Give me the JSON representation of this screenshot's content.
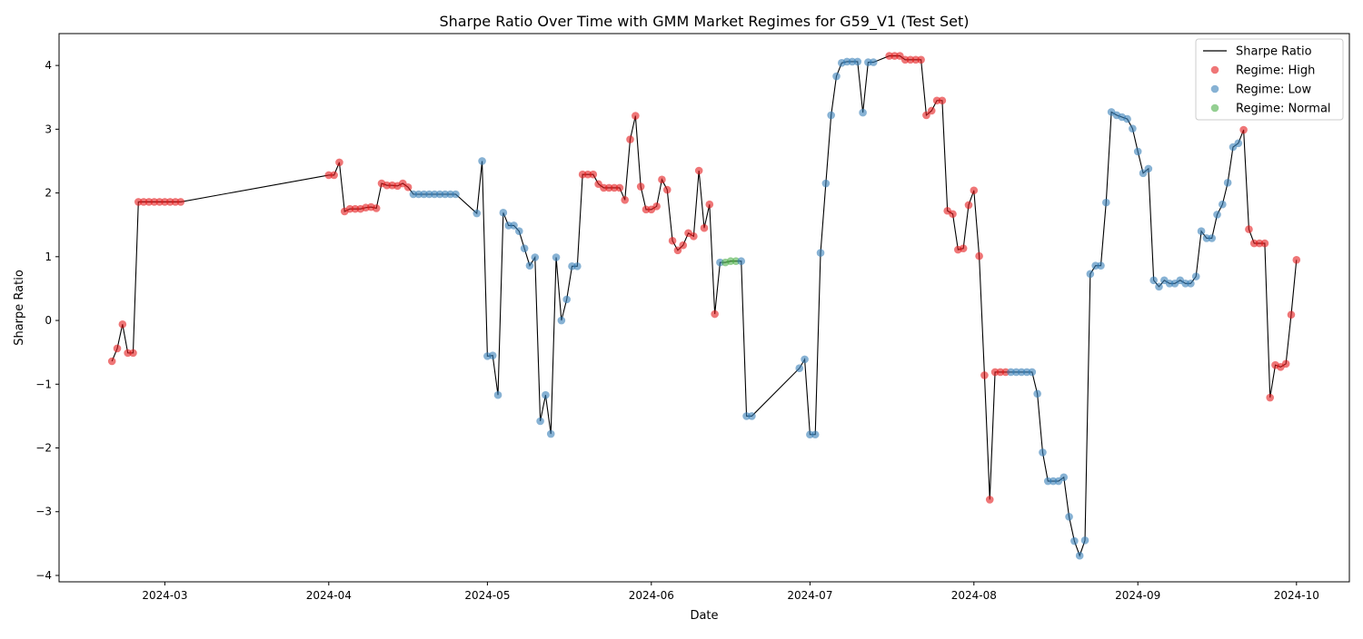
{
  "chart_data": {
    "type": "scatter",
    "title": "Sharpe Ratio Over Time with GMM Market Regimes for G59_V1 (Test Set)",
    "xlabel": "Date",
    "ylabel": "Sharpe Ratio",
    "xlim": [
      "2024-02-10",
      "2024-10-11"
    ],
    "ylim": [
      -4.1,
      4.5
    ],
    "x_ticks": [
      "2024-03-01",
      "2024-04-01",
      "2024-05-01",
      "2024-06-01",
      "2024-07-01",
      "2024-08-01",
      "2024-09-01",
      "2024-10-01"
    ],
    "x_tick_labels": [
      "2024-03",
      "2024-04",
      "2024-05",
      "2024-06",
      "2024-07",
      "2024-08",
      "2024-09",
      "2024-10"
    ],
    "y_ticks": [
      -4,
      -3,
      -2,
      -1,
      0,
      1,
      2,
      3,
      4
    ],
    "y_tick_labels": [
      "−4",
      "−3",
      "−2",
      "−1",
      "0",
      "1",
      "2",
      "3",
      "4"
    ],
    "grid": false,
    "legend_position": "top-right",
    "legend": [
      {
        "label": "Sharpe Ratio",
        "kind": "line",
        "color": "#000000"
      },
      {
        "label": "Regime: High",
        "kind": "marker",
        "color": "#e41a1c"
      },
      {
        "label": "Regime: Low",
        "kind": "marker",
        "color": "#377eb8"
      },
      {
        "label": "Regime: Normal",
        "kind": "marker",
        "color": "#4daf4a"
      }
    ],
    "line_color": "#000000",
    "regime_colors": {
      "High": "#e41a1c",
      "Low": "#377eb8",
      "Normal": "#4daf4a"
    },
    "points": [
      {
        "x": "2024-02-20",
        "y": -0.64,
        "regime": "High"
      },
      {
        "x": "2024-02-21",
        "y": -0.44,
        "regime": "High"
      },
      {
        "x": "2024-02-22",
        "y": -0.06,
        "regime": "High"
      },
      {
        "x": "2024-02-23",
        "y": -0.51,
        "regime": "High"
      },
      {
        "x": "2024-02-24",
        "y": -0.51,
        "regime": "High"
      },
      {
        "x": "2024-02-25",
        "y": 1.86,
        "regime": "High"
      },
      {
        "x": "2024-02-26",
        "y": 1.86,
        "regime": "High"
      },
      {
        "x": "2024-02-27",
        "y": 1.86,
        "regime": "High"
      },
      {
        "x": "2024-02-28",
        "y": 1.86,
        "regime": "High"
      },
      {
        "x": "2024-02-29",
        "y": 1.86,
        "regime": "High"
      },
      {
        "x": "2024-03-01",
        "y": 1.86,
        "regime": "High"
      },
      {
        "x": "2024-03-02",
        "y": 1.86,
        "regime": "High"
      },
      {
        "x": "2024-03-03",
        "y": 1.86,
        "regime": "High"
      },
      {
        "x": "2024-03-04",
        "y": 1.86,
        "regime": "High"
      },
      {
        "x": "2024-04-01",
        "y": 2.28,
        "regime": "High"
      },
      {
        "x": "2024-04-02",
        "y": 2.28,
        "regime": "High"
      },
      {
        "x": "2024-04-03",
        "y": 2.48,
        "regime": "High"
      },
      {
        "x": "2024-04-04",
        "y": 1.71,
        "regime": "High"
      },
      {
        "x": "2024-04-05",
        "y": 1.75,
        "regime": "High"
      },
      {
        "x": "2024-04-06",
        "y": 1.75,
        "regime": "High"
      },
      {
        "x": "2024-04-07",
        "y": 1.75,
        "regime": "High"
      },
      {
        "x": "2024-04-08",
        "y": 1.77,
        "regime": "High"
      },
      {
        "x": "2024-04-09",
        "y": 1.78,
        "regime": "High"
      },
      {
        "x": "2024-04-10",
        "y": 1.76,
        "regime": "High"
      },
      {
        "x": "2024-04-11",
        "y": 2.15,
        "regime": "High"
      },
      {
        "x": "2024-04-12",
        "y": 2.12,
        "regime": "High"
      },
      {
        "x": "2024-04-13",
        "y": 2.12,
        "regime": "High"
      },
      {
        "x": "2024-04-14",
        "y": 2.11,
        "regime": "High"
      },
      {
        "x": "2024-04-15",
        "y": 2.15,
        "regime": "High"
      },
      {
        "x": "2024-04-16",
        "y": 2.09,
        "regime": "High"
      },
      {
        "x": "2024-04-17",
        "y": 1.98,
        "regime": "Low"
      },
      {
        "x": "2024-04-18",
        "y": 1.98,
        "regime": "Low"
      },
      {
        "x": "2024-04-19",
        "y": 1.98,
        "regime": "Low"
      },
      {
        "x": "2024-04-20",
        "y": 1.98,
        "regime": "Low"
      },
      {
        "x": "2024-04-21",
        "y": 1.98,
        "regime": "Low"
      },
      {
        "x": "2024-04-22",
        "y": 1.98,
        "regime": "Low"
      },
      {
        "x": "2024-04-23",
        "y": 1.98,
        "regime": "Low"
      },
      {
        "x": "2024-04-24",
        "y": 1.98,
        "regime": "Low"
      },
      {
        "x": "2024-04-25",
        "y": 1.98,
        "regime": "Low"
      },
      {
        "x": "2024-04-29",
        "y": 1.68,
        "regime": "Low"
      },
      {
        "x": "2024-04-30",
        "y": 2.5,
        "regime": "Low"
      },
      {
        "x": "2024-05-01",
        "y": -0.56,
        "regime": "Low"
      },
      {
        "x": "2024-05-02",
        "y": -0.55,
        "regime": "Low"
      },
      {
        "x": "2024-05-03",
        "y": -1.17,
        "regime": "Low"
      },
      {
        "x": "2024-05-04",
        "y": 1.69,
        "regime": "Low"
      },
      {
        "x": "2024-05-05",
        "y": 1.49,
        "regime": "Low"
      },
      {
        "x": "2024-05-06",
        "y": 1.49,
        "regime": "Low"
      },
      {
        "x": "2024-05-07",
        "y": 1.4,
        "regime": "Low"
      },
      {
        "x": "2024-05-08",
        "y": 1.13,
        "regime": "Low"
      },
      {
        "x": "2024-05-09",
        "y": 0.86,
        "regime": "Low"
      },
      {
        "x": "2024-05-10",
        "y": 0.99,
        "regime": "Low"
      },
      {
        "x": "2024-05-11",
        "y": -1.58,
        "regime": "Low"
      },
      {
        "x": "2024-05-12",
        "y": -1.17,
        "regime": "Low"
      },
      {
        "x": "2024-05-13",
        "y": -1.78,
        "regime": "Low"
      },
      {
        "x": "2024-05-14",
        "y": 0.99,
        "regime": "Low"
      },
      {
        "x": "2024-05-15",
        "y": 0.0,
        "regime": "Low"
      },
      {
        "x": "2024-05-16",
        "y": 0.33,
        "regime": "Low"
      },
      {
        "x": "2024-05-17",
        "y": 0.85,
        "regime": "Low"
      },
      {
        "x": "2024-05-18",
        "y": 0.85,
        "regime": "Low"
      },
      {
        "x": "2024-05-19",
        "y": 2.29,
        "regime": "High"
      },
      {
        "x": "2024-05-20",
        "y": 2.29,
        "regime": "High"
      },
      {
        "x": "2024-05-21",
        "y": 2.29,
        "regime": "High"
      },
      {
        "x": "2024-05-22",
        "y": 2.14,
        "regime": "High"
      },
      {
        "x": "2024-05-23",
        "y": 2.08,
        "regime": "High"
      },
      {
        "x": "2024-05-24",
        "y": 2.08,
        "regime": "High"
      },
      {
        "x": "2024-05-25",
        "y": 2.08,
        "regime": "High"
      },
      {
        "x": "2024-05-26",
        "y": 2.08,
        "regime": "High"
      },
      {
        "x": "2024-05-27",
        "y": 1.89,
        "regime": "High"
      },
      {
        "x": "2024-05-28",
        "y": 2.84,
        "regime": "High"
      },
      {
        "x": "2024-05-29",
        "y": 3.21,
        "regime": "High"
      },
      {
        "x": "2024-05-30",
        "y": 2.1,
        "regime": "High"
      },
      {
        "x": "2024-05-31",
        "y": 1.74,
        "regime": "High"
      },
      {
        "x": "2024-06-01",
        "y": 1.74,
        "regime": "High"
      },
      {
        "x": "2024-06-02",
        "y": 1.79,
        "regime": "High"
      },
      {
        "x": "2024-06-03",
        "y": 2.21,
        "regime": "High"
      },
      {
        "x": "2024-06-04",
        "y": 2.05,
        "regime": "High"
      },
      {
        "x": "2024-06-05",
        "y": 1.25,
        "regime": "High"
      },
      {
        "x": "2024-06-06",
        "y": 1.1,
        "regime": "High"
      },
      {
        "x": "2024-06-07",
        "y": 1.18,
        "regime": "High"
      },
      {
        "x": "2024-06-08",
        "y": 1.37,
        "regime": "High"
      },
      {
        "x": "2024-06-09",
        "y": 1.32,
        "regime": "High"
      },
      {
        "x": "2024-06-10",
        "y": 2.35,
        "regime": "High"
      },
      {
        "x": "2024-06-11",
        "y": 1.45,
        "regime": "High"
      },
      {
        "x": "2024-06-12",
        "y": 1.82,
        "regime": "High"
      },
      {
        "x": "2024-06-13",
        "y": 0.1,
        "regime": "High"
      },
      {
        "x": "2024-06-14",
        "y": 0.91,
        "regime": "Low"
      },
      {
        "x": "2024-06-15",
        "y": 0.91,
        "regime": "Normal"
      },
      {
        "x": "2024-06-16",
        "y": 0.93,
        "regime": "Normal"
      },
      {
        "x": "2024-06-17",
        "y": 0.93,
        "regime": "Normal"
      },
      {
        "x": "2024-06-18",
        "y": 0.93,
        "regime": "Low"
      },
      {
        "x": "2024-06-19",
        "y": -1.5,
        "regime": "Low"
      },
      {
        "x": "2024-06-20",
        "y": -1.5,
        "regime": "Low"
      },
      {
        "x": "2024-06-29",
        "y": -0.75,
        "regime": "Low"
      },
      {
        "x": "2024-06-30",
        "y": -0.61,
        "regime": "Low"
      },
      {
        "x": "2024-07-01",
        "y": -1.79,
        "regime": "Low"
      },
      {
        "x": "2024-07-02",
        "y": -1.79,
        "regime": "Low"
      },
      {
        "x": "2024-07-03",
        "y": 1.06,
        "regime": "Low"
      },
      {
        "x": "2024-07-04",
        "y": 2.15,
        "regime": "Low"
      },
      {
        "x": "2024-07-05",
        "y": 3.22,
        "regime": "Low"
      },
      {
        "x": "2024-07-06",
        "y": 3.83,
        "regime": "Low"
      },
      {
        "x": "2024-07-07",
        "y": 4.04,
        "regime": "Low"
      },
      {
        "x": "2024-07-08",
        "y": 4.06,
        "regime": "Low"
      },
      {
        "x": "2024-07-09",
        "y": 4.06,
        "regime": "Low"
      },
      {
        "x": "2024-07-10",
        "y": 4.06,
        "regime": "Low"
      },
      {
        "x": "2024-07-11",
        "y": 3.26,
        "regime": "Low"
      },
      {
        "x": "2024-07-12",
        "y": 4.05,
        "regime": "Low"
      },
      {
        "x": "2024-07-13",
        "y": 4.05,
        "regime": "Low"
      },
      {
        "x": "2024-07-16",
        "y": 4.15,
        "regime": "High"
      },
      {
        "x": "2024-07-17",
        "y": 4.15,
        "regime": "High"
      },
      {
        "x": "2024-07-18",
        "y": 4.15,
        "regime": "High"
      },
      {
        "x": "2024-07-19",
        "y": 4.09,
        "regime": "High"
      },
      {
        "x": "2024-07-20",
        "y": 4.09,
        "regime": "High"
      },
      {
        "x": "2024-07-21",
        "y": 4.09,
        "regime": "High"
      },
      {
        "x": "2024-07-22",
        "y": 4.09,
        "regime": "High"
      },
      {
        "x": "2024-07-23",
        "y": 3.22,
        "regime": "High"
      },
      {
        "x": "2024-07-24",
        "y": 3.29,
        "regime": "High"
      },
      {
        "x": "2024-07-25",
        "y": 3.45,
        "regime": "High"
      },
      {
        "x": "2024-07-26",
        "y": 3.45,
        "regime": "High"
      },
      {
        "x": "2024-07-27",
        "y": 1.72,
        "regime": "High"
      },
      {
        "x": "2024-07-28",
        "y": 1.67,
        "regime": "High"
      },
      {
        "x": "2024-07-29",
        "y": 1.11,
        "regime": "High"
      },
      {
        "x": "2024-07-30",
        "y": 1.13,
        "regime": "High"
      },
      {
        "x": "2024-07-31",
        "y": 1.81,
        "regime": "High"
      },
      {
        "x": "2024-08-01",
        "y": 2.04,
        "regime": "High"
      },
      {
        "x": "2024-08-02",
        "y": 1.01,
        "regime": "High"
      },
      {
        "x": "2024-08-03",
        "y": -0.86,
        "regime": "High"
      },
      {
        "x": "2024-08-04",
        "y": -2.81,
        "regime": "High"
      },
      {
        "x": "2024-08-05",
        "y": -0.81,
        "regime": "High"
      },
      {
        "x": "2024-08-06",
        "y": -0.81,
        "regime": "High"
      },
      {
        "x": "2024-08-07",
        "y": -0.81,
        "regime": "High"
      },
      {
        "x": "2024-08-08",
        "y": -0.81,
        "regime": "Low"
      },
      {
        "x": "2024-08-09",
        "y": -0.81,
        "regime": "Low"
      },
      {
        "x": "2024-08-10",
        "y": -0.81,
        "regime": "Low"
      },
      {
        "x": "2024-08-11",
        "y": -0.81,
        "regime": "Low"
      },
      {
        "x": "2024-08-12",
        "y": -0.81,
        "regime": "Low"
      },
      {
        "x": "2024-08-13",
        "y": -1.15,
        "regime": "Low"
      },
      {
        "x": "2024-08-14",
        "y": -2.07,
        "regime": "Low"
      },
      {
        "x": "2024-08-15",
        "y": -2.52,
        "regime": "Low"
      },
      {
        "x": "2024-08-16",
        "y": -2.52,
        "regime": "Low"
      },
      {
        "x": "2024-08-17",
        "y": -2.52,
        "regime": "Low"
      },
      {
        "x": "2024-08-18",
        "y": -2.46,
        "regime": "Low"
      },
      {
        "x": "2024-08-19",
        "y": -3.08,
        "regime": "Low"
      },
      {
        "x": "2024-08-20",
        "y": -3.46,
        "regime": "Low"
      },
      {
        "x": "2024-08-21",
        "y": -3.69,
        "regime": "Low"
      },
      {
        "x": "2024-08-22",
        "y": -3.45,
        "regime": "Low"
      },
      {
        "x": "2024-08-23",
        "y": 0.73,
        "regime": "Low"
      },
      {
        "x": "2024-08-24",
        "y": 0.86,
        "regime": "Low"
      },
      {
        "x": "2024-08-25",
        "y": 0.86,
        "regime": "Low"
      },
      {
        "x": "2024-08-26",
        "y": 1.85,
        "regime": "Low"
      },
      {
        "x": "2024-08-27",
        "y": 3.27,
        "regime": "Low"
      },
      {
        "x": "2024-08-28",
        "y": 3.22,
        "regime": "Low"
      },
      {
        "x": "2024-08-29",
        "y": 3.19,
        "regime": "Low"
      },
      {
        "x": "2024-08-30",
        "y": 3.16,
        "regime": "Low"
      },
      {
        "x": "2024-08-31",
        "y": 3.01,
        "regime": "Low"
      },
      {
        "x": "2024-09-01",
        "y": 2.65,
        "regime": "Low"
      },
      {
        "x": "2024-09-02",
        "y": 2.31,
        "regime": "Low"
      },
      {
        "x": "2024-09-03",
        "y": 2.38,
        "regime": "Low"
      },
      {
        "x": "2024-09-04",
        "y": 0.63,
        "regime": "Low"
      },
      {
        "x": "2024-09-05",
        "y": 0.53,
        "regime": "Low"
      },
      {
        "x": "2024-09-06",
        "y": 0.63,
        "regime": "Low"
      },
      {
        "x": "2024-09-07",
        "y": 0.58,
        "regime": "Low"
      },
      {
        "x": "2024-09-08",
        "y": 0.58,
        "regime": "Low"
      },
      {
        "x": "2024-09-09",
        "y": 0.63,
        "regime": "Low"
      },
      {
        "x": "2024-09-10",
        "y": 0.58,
        "regime": "Low"
      },
      {
        "x": "2024-09-11",
        "y": 0.58,
        "regime": "Low"
      },
      {
        "x": "2024-09-12",
        "y": 0.69,
        "regime": "Low"
      },
      {
        "x": "2024-09-13",
        "y": 1.4,
        "regime": "Low"
      },
      {
        "x": "2024-09-14",
        "y": 1.29,
        "regime": "Low"
      },
      {
        "x": "2024-09-15",
        "y": 1.29,
        "regime": "Low"
      },
      {
        "x": "2024-09-16",
        "y": 1.66,
        "regime": "Low"
      },
      {
        "x": "2024-09-17",
        "y": 1.82,
        "regime": "Low"
      },
      {
        "x": "2024-09-18",
        "y": 2.16,
        "regime": "Low"
      },
      {
        "x": "2024-09-19",
        "y": 2.72,
        "regime": "Low"
      },
      {
        "x": "2024-09-20",
        "y": 2.78,
        "regime": "Low"
      },
      {
        "x": "2024-09-21",
        "y": 2.99,
        "regime": "High"
      },
      {
        "x": "2024-09-22",
        "y": 1.43,
        "regime": "High"
      },
      {
        "x": "2024-09-23",
        "y": 1.21,
        "regime": "High"
      },
      {
        "x": "2024-09-24",
        "y": 1.21,
        "regime": "High"
      },
      {
        "x": "2024-09-25",
        "y": 1.21,
        "regime": "High"
      },
      {
        "x": "2024-09-26",
        "y": -1.21,
        "regime": "High"
      },
      {
        "x": "2024-09-27",
        "y": -0.7,
        "regime": "High"
      },
      {
        "x": "2024-09-28",
        "y": -0.73,
        "regime": "High"
      },
      {
        "x": "2024-09-29",
        "y": -0.68,
        "regime": "High"
      },
      {
        "x": "2024-09-30",
        "y": 0.09,
        "regime": "High"
      },
      {
        "x": "2024-10-01",
        "y": 0.95,
        "regime": "High"
      }
    ]
  }
}
